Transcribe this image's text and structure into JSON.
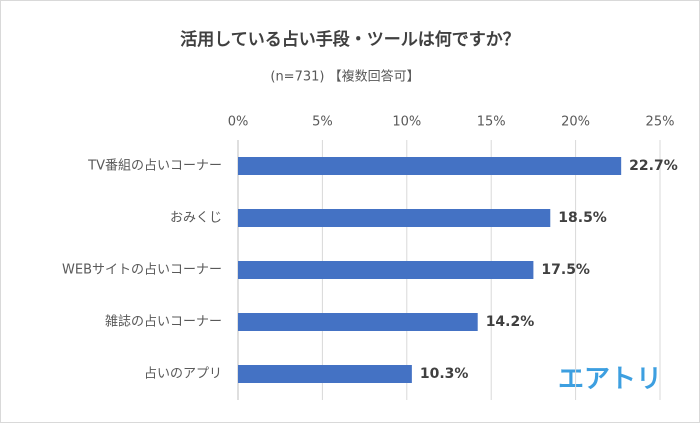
{
  "chart_data": {
    "type": "bar",
    "orientation": "horizontal",
    "title": "活用している占い手段・ツールは何ですか？",
    "subtitle": "(n=731) 【複数回答可】",
    "categories": [
      "TV番組の占いコーナー",
      "おみくじ",
      "WEBサイトの占いコーナー",
      "雑誌の占いコーナー",
      "占いのアプリ"
    ],
    "values": [
      22.7,
      18.5,
      17.5,
      14.2,
      10.3
    ],
    "value_labels": [
      "22.7%",
      "18.5%",
      "17.5%",
      "14.2%",
      "10.3%"
    ],
    "color": "#4472c4",
    "xlim": [
      0,
      25
    ],
    "xticks": [
      {
        "value": 0,
        "label": "0%"
      },
      {
        "value": 5,
        "label": "5%"
      },
      {
        "value": 10,
        "label": "10%"
      },
      {
        "value": 15,
        "label": "15%"
      },
      {
        "value": 20,
        "label": "20%"
      },
      {
        "value": 25,
        "label": "25%"
      }
    ],
    "grid": true
  },
  "logo": "エアトリ"
}
